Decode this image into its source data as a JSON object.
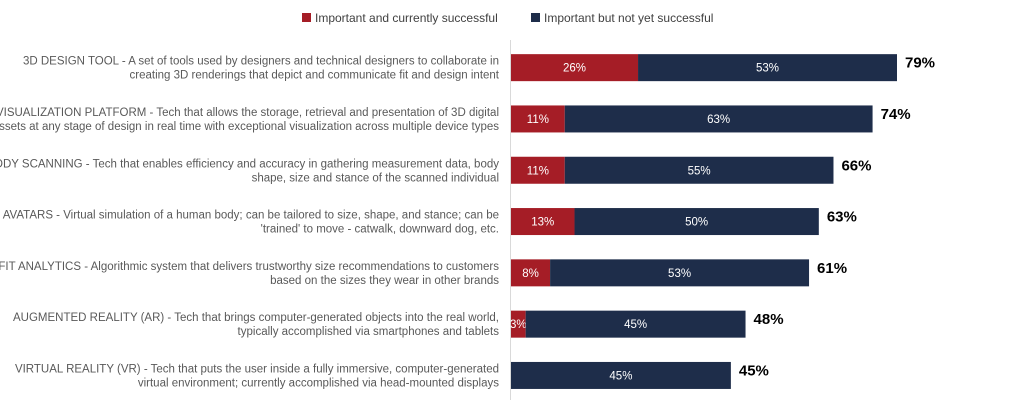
{
  "chart_data": {
    "type": "bar",
    "orientation": "horizontal",
    "stacked": true,
    "xlim": [
      0,
      100
    ],
    "grid": false,
    "legend_position": "top",
    "categories": [
      "3D DESIGN TOOL - A set of tools used by designers and technical designers to collaborate in creating 3D renderings that depict and communicate fit and design intent",
      "VISUALIZATION PLATFORM - Tech that allows the storage, retrieval and presentation of 3D digital assets at any stage of design in real time with exceptional visualization across multiple device types",
      "BODY SCANNING - Tech that enables efficiency and accuracy in gathering measurement data, body shape, size and stance of the scanned individual",
      "AVATARS - Virtual simulation of a human body; can be tailored to size, shape, and stance; can be 'trained' to move - catwalk, downward dog, etc.",
      "FIT ANALYTICS - Algorithmic system that delivers trustworthy size recommendations to customers based on the sizes they wear in other brands",
      "AUGMENTED REALITY (AR) - Tech that brings computer-generated objects into the real world, typically accomplished via smartphones and tablets",
      "VIRTUAL REALITY (VR) - Tech that puts the user inside a fully immersive, computer-generated virtual environment; currently accomplished via head-mounted displays"
    ],
    "label_lines": [
      [
        "3D DESIGN TOOL - A set of tools used by designers and technical designers to collaborate in",
        "creating 3D renderings that depict and communicate fit and design intent"
      ],
      [
        "VISUALIZATION PLATFORM - Tech that allows the storage, retrieval and presentation of 3D digital",
        "assets at any stage of design in real time with exceptional visualization across multiple device types"
      ],
      [
        "BODY SCANNING - Tech that enables efficiency and accuracy in gathering measurement data, body",
        "shape, size and stance of the scanned individual"
      ],
      [
        "AVATARS - Virtual simulation of a human body; can be tailored to size, shape, and stance; can be",
        "'trained' to move - catwalk, downward dog, etc."
      ],
      [
        "FIT ANALYTICS - Algorithmic system that delivers trustworthy size recommendations to customers",
        "based on the sizes they wear in other brands"
      ],
      [
        "AUGMENTED REALITY (AR) - Tech that brings computer-generated objects into the real world,",
        "typically accomplished via smartphones and tablets"
      ],
      [
        "VIRTUAL REALITY (VR) - Tech that puts the user inside a fully immersive, computer-generated",
        "virtual environment; currently accomplished via head-mounted displays"
      ]
    ],
    "series": [
      {
        "name": "Important and currently successful",
        "color": "#a51d26",
        "values": [
          26,
          11,
          11,
          13,
          8,
          3,
          0
        ]
      },
      {
        "name": "Important but not yet successful",
        "color": "#1e2d4a",
        "values": [
          53,
          63,
          55,
          50,
          53,
          45,
          45
        ]
      }
    ],
    "totals": [
      79,
      74,
      66,
      63,
      61,
      48,
      45
    ]
  }
}
